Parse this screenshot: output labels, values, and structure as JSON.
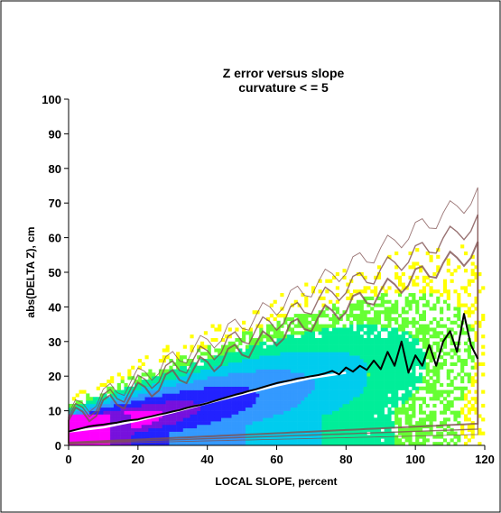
{
  "chart_data": {
    "type": "heatmap",
    "title": "Z error versus slope",
    "subtitle": "curvature < = 5",
    "xlabel": "LOCAL SLOPE, percent",
    "ylabel": "abs(DELTA Z), cm",
    "xlim": [
      0,
      120
    ],
    "ylim": [
      0,
      100
    ],
    "xticks": [
      "0",
      "20",
      "40",
      "60",
      "80",
      "100",
      "120"
    ],
    "yticks": [
      "0",
      "10",
      "20",
      "30",
      "40",
      "50",
      "60",
      "70",
      "80",
      "90",
      "100"
    ],
    "grid": false,
    "legend": "none",
    "colors": {
      "background": "#ffffff",
      "frame": "#000000",
      "density_levels": [
        "#ffff00",
        "#66ff33",
        "#00ee99",
        "#00ccee",
        "#3399ff",
        "#2222ff",
        "#7711dd",
        "#ff00ff"
      ],
      "contour": "#805050",
      "fit_line": "#ffffff",
      "mean_line": "#000000"
    },
    "series": [
      {
        "type": "line",
        "color": "#ffffff",
        "x": [
          0,
          10,
          20,
          30,
          40,
          50,
          60,
          70,
          80
        ],
        "y": [
          4,
          5.2,
          7.2,
          9.6,
          12.2,
          14.8,
          17.3,
          19.5,
          21
        ]
      },
      {
        "type": "line",
        "color": "#000000",
        "x": [
          0,
          2,
          4,
          6,
          8,
          10,
          12,
          14,
          16,
          18,
          20,
          22,
          24,
          26,
          28,
          30,
          32,
          34,
          36,
          38,
          40,
          42,
          44,
          46,
          48,
          50,
          52,
          54,
          56,
          58,
          60,
          62,
          64,
          66,
          68,
          70,
          72,
          74,
          76,
          78,
          80,
          82,
          84,
          86,
          88,
          90,
          92,
          94,
          96,
          98,
          100,
          102,
          104,
          106,
          108,
          110,
          112,
          114,
          116,
          118
        ],
        "y": [
          4,
          4.5,
          5,
          5.5,
          5.8,
          6,
          6.3,
          6.6,
          7,
          7.3,
          7.5,
          8,
          8.4,
          8.9,
          9.3,
          9.8,
          10.2,
          10.8,
          11.3,
          11.7,
          12.2,
          12.8,
          13.4,
          14,
          14.6,
          15.1,
          15.7,
          16.2,
          16.8,
          17.4,
          18,
          18.4,
          18.8,
          19.3,
          19.6,
          20,
          20.3,
          20.8,
          21.5,
          20.5,
          22.5,
          21.3,
          23,
          21.8,
          24.5,
          22,
          27,
          23,
          30,
          21,
          26,
          23,
          29,
          23,
          30,
          33,
          27,
          38,
          29,
          25
        ]
      }
    ]
  }
}
